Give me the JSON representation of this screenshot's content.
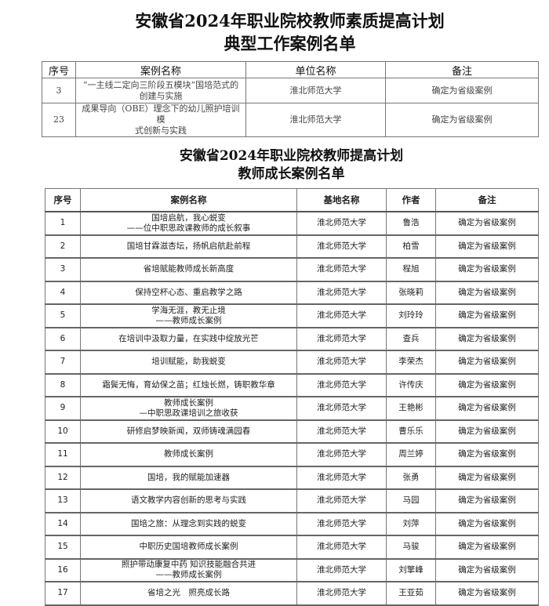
{
  "section1": {
    "title_line1": "安徽省2024年职业院校教师素质提高计划",
    "title_line2": "典型工作案例名单",
    "headers": [
      "序号",
      "案例名称",
      "单位名称",
      "备注"
    ],
    "rows": [
      {
        "no": "3",
        "name1": "“一主线二定向三阶段五模块”国培范式的",
        "name2": "创建与实施",
        "unit": "淮北师范大学",
        "note": "确定为省级案例"
      },
      {
        "no": "23",
        "name1": "成果导向（OBE）理念下的幼儿照护培训模",
        "name2": "式创新与实践",
        "unit": "淮北师范大学",
        "note": "确定为省级案例"
      }
    ]
  },
  "section2": {
    "title_line1": "安徽省2024年职业院校教师提高计划",
    "title_line2": "教师成长案例名单",
    "headers": [
      "序号",
      "案例名称",
      "基地名称",
      "作者",
      "备注"
    ],
    "rows": [
      {
        "no": "1",
        "name1": "国培启航，我心蜕变",
        "name2": "——位中职思政课教师的成长叙事",
        "base": "淮北师范大学",
        "author": "鲁浩",
        "note": "确定为省级案例"
      },
      {
        "no": "2",
        "name1": "国培甘霖滋杏坛，扬帆启航赴前程",
        "name2": "",
        "base": "淮北师范大学",
        "author": "柏雪",
        "note": "确定为省级案例"
      },
      {
        "no": "3",
        "name1": "省培赋能教师成长新高度",
        "name2": "",
        "base": "淮北师范大学",
        "author": "程旭",
        "note": "确定为省级案例"
      },
      {
        "no": "4",
        "name1": "保持空杯心态、重启教学之路",
        "name2": "",
        "base": "淮北师范大学",
        "author": "张晓莉",
        "note": "确定为省级案例"
      },
      {
        "no": "5",
        "name1": "学海无涯，教无止境",
        "name2": "——教师成长案例",
        "base": "淮北师范大学",
        "author": "刘玲玲",
        "note": "确定为省级案例"
      },
      {
        "no": "6",
        "name1": "在培训中汲取力量，在实践中绽放光芒",
        "name2": "",
        "base": "淮北师范大学",
        "author": "查兵",
        "note": "确定为省级案例"
      },
      {
        "no": "7",
        "name1": "培训赋能，助我蜕变",
        "name2": "",
        "base": "淮北师范大学",
        "author": "李荣杰",
        "note": "确定为省级案例"
      },
      {
        "no": "8",
        "name1": "霜鬓无悔，育幼保之苗；红烛长燃，铸职教华章",
        "name2": "",
        "base": "淮北师范大学",
        "author": "许传庆",
        "note": "确定为省级案例"
      },
      {
        "no": "9",
        "name1": "教师成长案例",
        "name2": "—中职思政课培训之旅收获",
        "base": "淮北师范大学",
        "author": "王艳彬",
        "note": "确定为省级案例"
      },
      {
        "no": "10",
        "name1": "研修启梦映新闻，双师铸魂满园春",
        "name2": "",
        "base": "淮北师范大学",
        "author": "曹乐乐",
        "note": "确定为省级案例"
      },
      {
        "no": "11",
        "name1": "教师成长案例",
        "name2": "",
        "base": "淮北师范大学",
        "author": "周兰婷",
        "note": "确定为省级案例"
      },
      {
        "no": "12",
        "name1": "国培，我的赋能加速器",
        "name2": "",
        "base": "淮北师范大学",
        "author": "张勇",
        "note": "确定为省级案例"
      },
      {
        "no": "13",
        "name1": "语文教学内容创新的思考与实践",
        "name2": "",
        "base": "淮北师范大学",
        "author": "马园",
        "note": "确定为省级案例"
      },
      {
        "no": "14",
        "name1": "国培之旅：从理念到实践的蜕变",
        "name2": "",
        "base": "淮北师范大学",
        "author": "刘萍",
        "note": "确定为省级案例"
      },
      {
        "no": "15",
        "name1": "中职历史国培教师成长案例",
        "name2": "",
        "base": "淮北师范大学",
        "author": "马骏",
        "note": "确定为省级案例"
      },
      {
        "no": "16",
        "name1": "照护带动康复中药 知识技能融合共进",
        "name2": "——教师成长案例",
        "base": "淮北师范大学",
        "author": "刘擎峰",
        "note": "确定为省级案例"
      },
      {
        "no": "17",
        "name1": "省培之光　照亮成长路",
        "name2": "",
        "base": "淮北师范大学",
        "author": "王亚茹",
        "note": "确定为省级案例"
      }
    ]
  }
}
